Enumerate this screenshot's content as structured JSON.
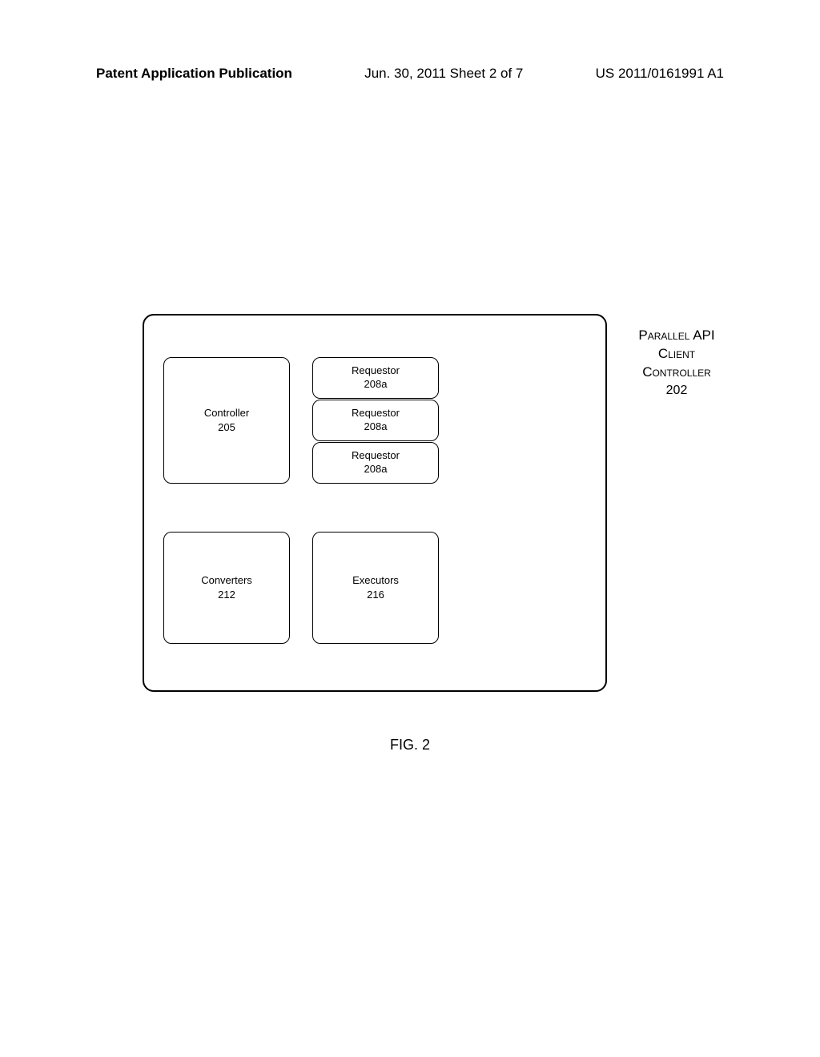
{
  "header": {
    "left": "Patent Application Publication",
    "center": "Jun. 30, 2011  Sheet 2 of 7",
    "right": "US 2011/0161991 A1"
  },
  "diagram": {
    "side_label": {
      "line1": "Parallel API",
      "line2": "Client",
      "line3": "Controller",
      "line4": "202"
    },
    "controller": {
      "label": "Controller",
      "ref": "205"
    },
    "requestors": [
      {
        "label": "Requestor",
        "ref": "208a"
      },
      {
        "label": "Requestor",
        "ref": "208a"
      },
      {
        "label": "Requestor",
        "ref": "208a"
      }
    ],
    "converters": {
      "label": "Converters",
      "ref": "212"
    },
    "executors": {
      "label": "Executors",
      "ref": "216"
    }
  },
  "caption": "FIG. 2",
  "style": {
    "page_bg": "#ffffff",
    "border_color": "#000000",
    "text_color": "#000000",
    "box_border_radius": 10,
    "container_border_radius": 14,
    "header_fontsize": 17,
    "box_fontsize": 13,
    "caption_fontsize": 18
  }
}
